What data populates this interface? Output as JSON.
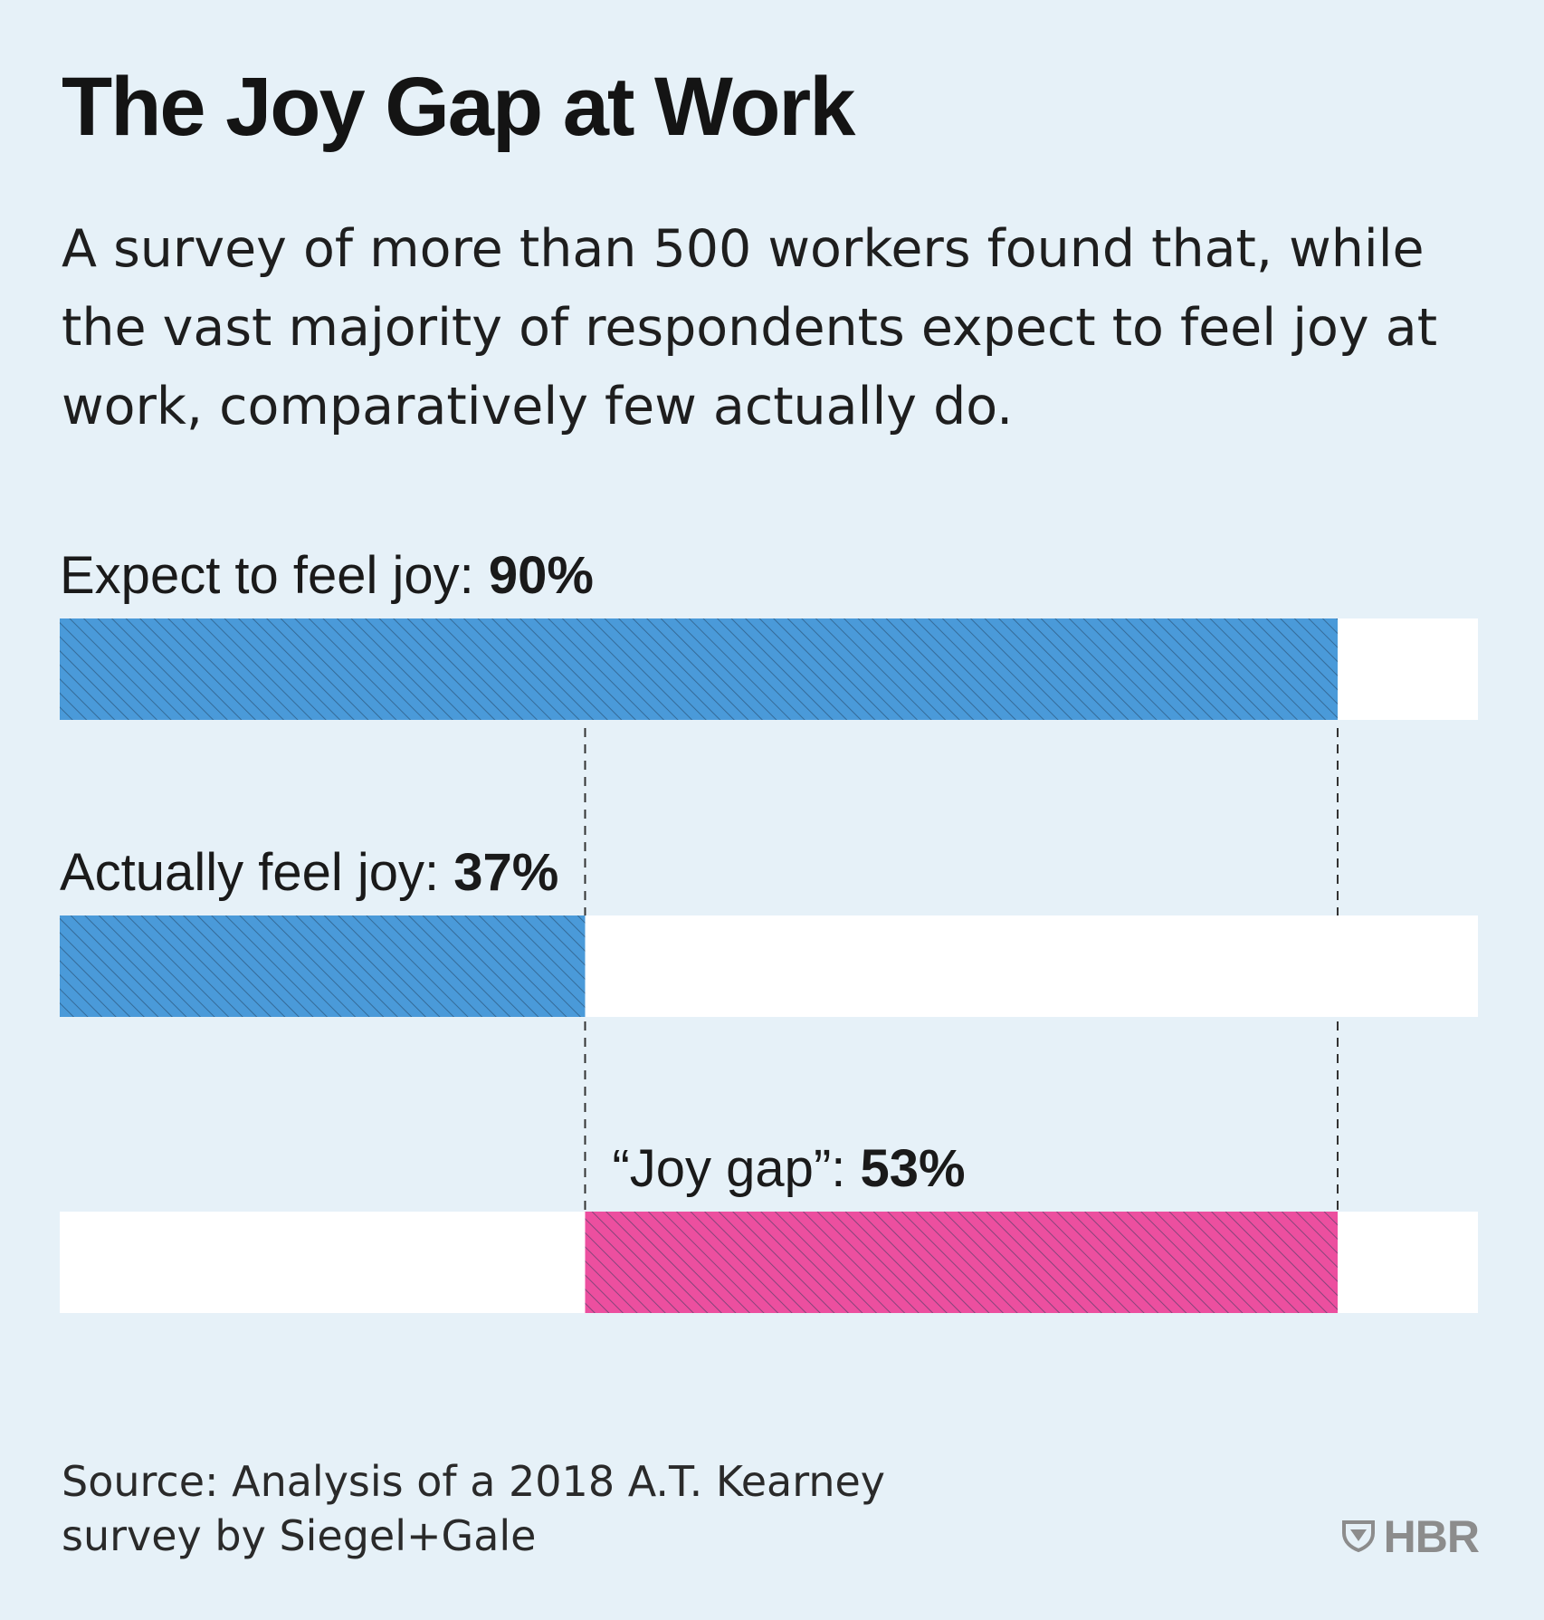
{
  "title": "The Joy Gap at Work",
  "subtitle": "A survey of more than 500 workers found that, while the vast majority of respondents expect to feel joy at work, comparatively few actually do.",
  "source_line1": "Source: Analysis of a 2018 A.T. Kearney",
  "source_line2": "survey by Siegel+Gale",
  "brand": "HBR",
  "brand_icon": "shield-icon",
  "colors": {
    "background": "#e6f1f8",
    "track": "#ffffff",
    "blue": "#4a9ad9",
    "pink": "#ec4f9f",
    "hatch": "#1e3a55",
    "text": "#1a1a1a"
  },
  "chart_data": {
    "type": "bar",
    "orientation": "horizontal",
    "xlim": [
      0,
      100
    ],
    "grid": false,
    "legend": "none",
    "bars": [
      {
        "label": "Expect to feel joy:",
        "value_label": "90%",
        "start": 0,
        "end": 90,
        "color": "#4a9ad9"
      },
      {
        "label": "Actually feel joy:",
        "value_label": "37%",
        "start": 0,
        "end": 37,
        "color": "#4a9ad9"
      },
      {
        "label": "“Joy gap”:",
        "value_label": "53%",
        "start": 37,
        "end": 90,
        "color": "#ec4f9f"
      }
    ],
    "reference_lines": [
      37,
      90
    ]
  }
}
